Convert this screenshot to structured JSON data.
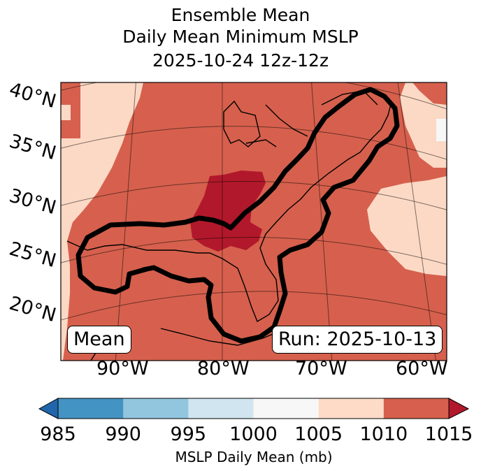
{
  "title": {
    "line1": "Ensemble Mean",
    "line2": "Daily Mean Minimum MSLP",
    "line3": "2025-10-24 12z-12z"
  },
  "map": {
    "lat_labels": [
      "40°N",
      "35°N",
      "30°N",
      "25°N",
      "20°N"
    ],
    "lon_labels": [
      "90°W",
      "80°W",
      "70°W",
      "60°W"
    ],
    "badge_left": "Mean",
    "badge_right": "Run: 2025-10-13",
    "colors": {
      "c1005": "#fcd9c5",
      "c1010": "#d6604d",
      "c_low": "#b2182b",
      "outline": "#000000"
    }
  },
  "colorbar": {
    "label": "MSLP Daily Mean (mb)",
    "ticks": [
      "985",
      "990",
      "995",
      "1000",
      "1005",
      "1010",
      "1015"
    ],
    "colors": [
      "#2166ac",
      "#4393c3",
      "#92c5de",
      "#d1e5f0",
      "#f7f7f7",
      "#fddbc7",
      "#d6604d",
      "#b2182b"
    ]
  }
}
